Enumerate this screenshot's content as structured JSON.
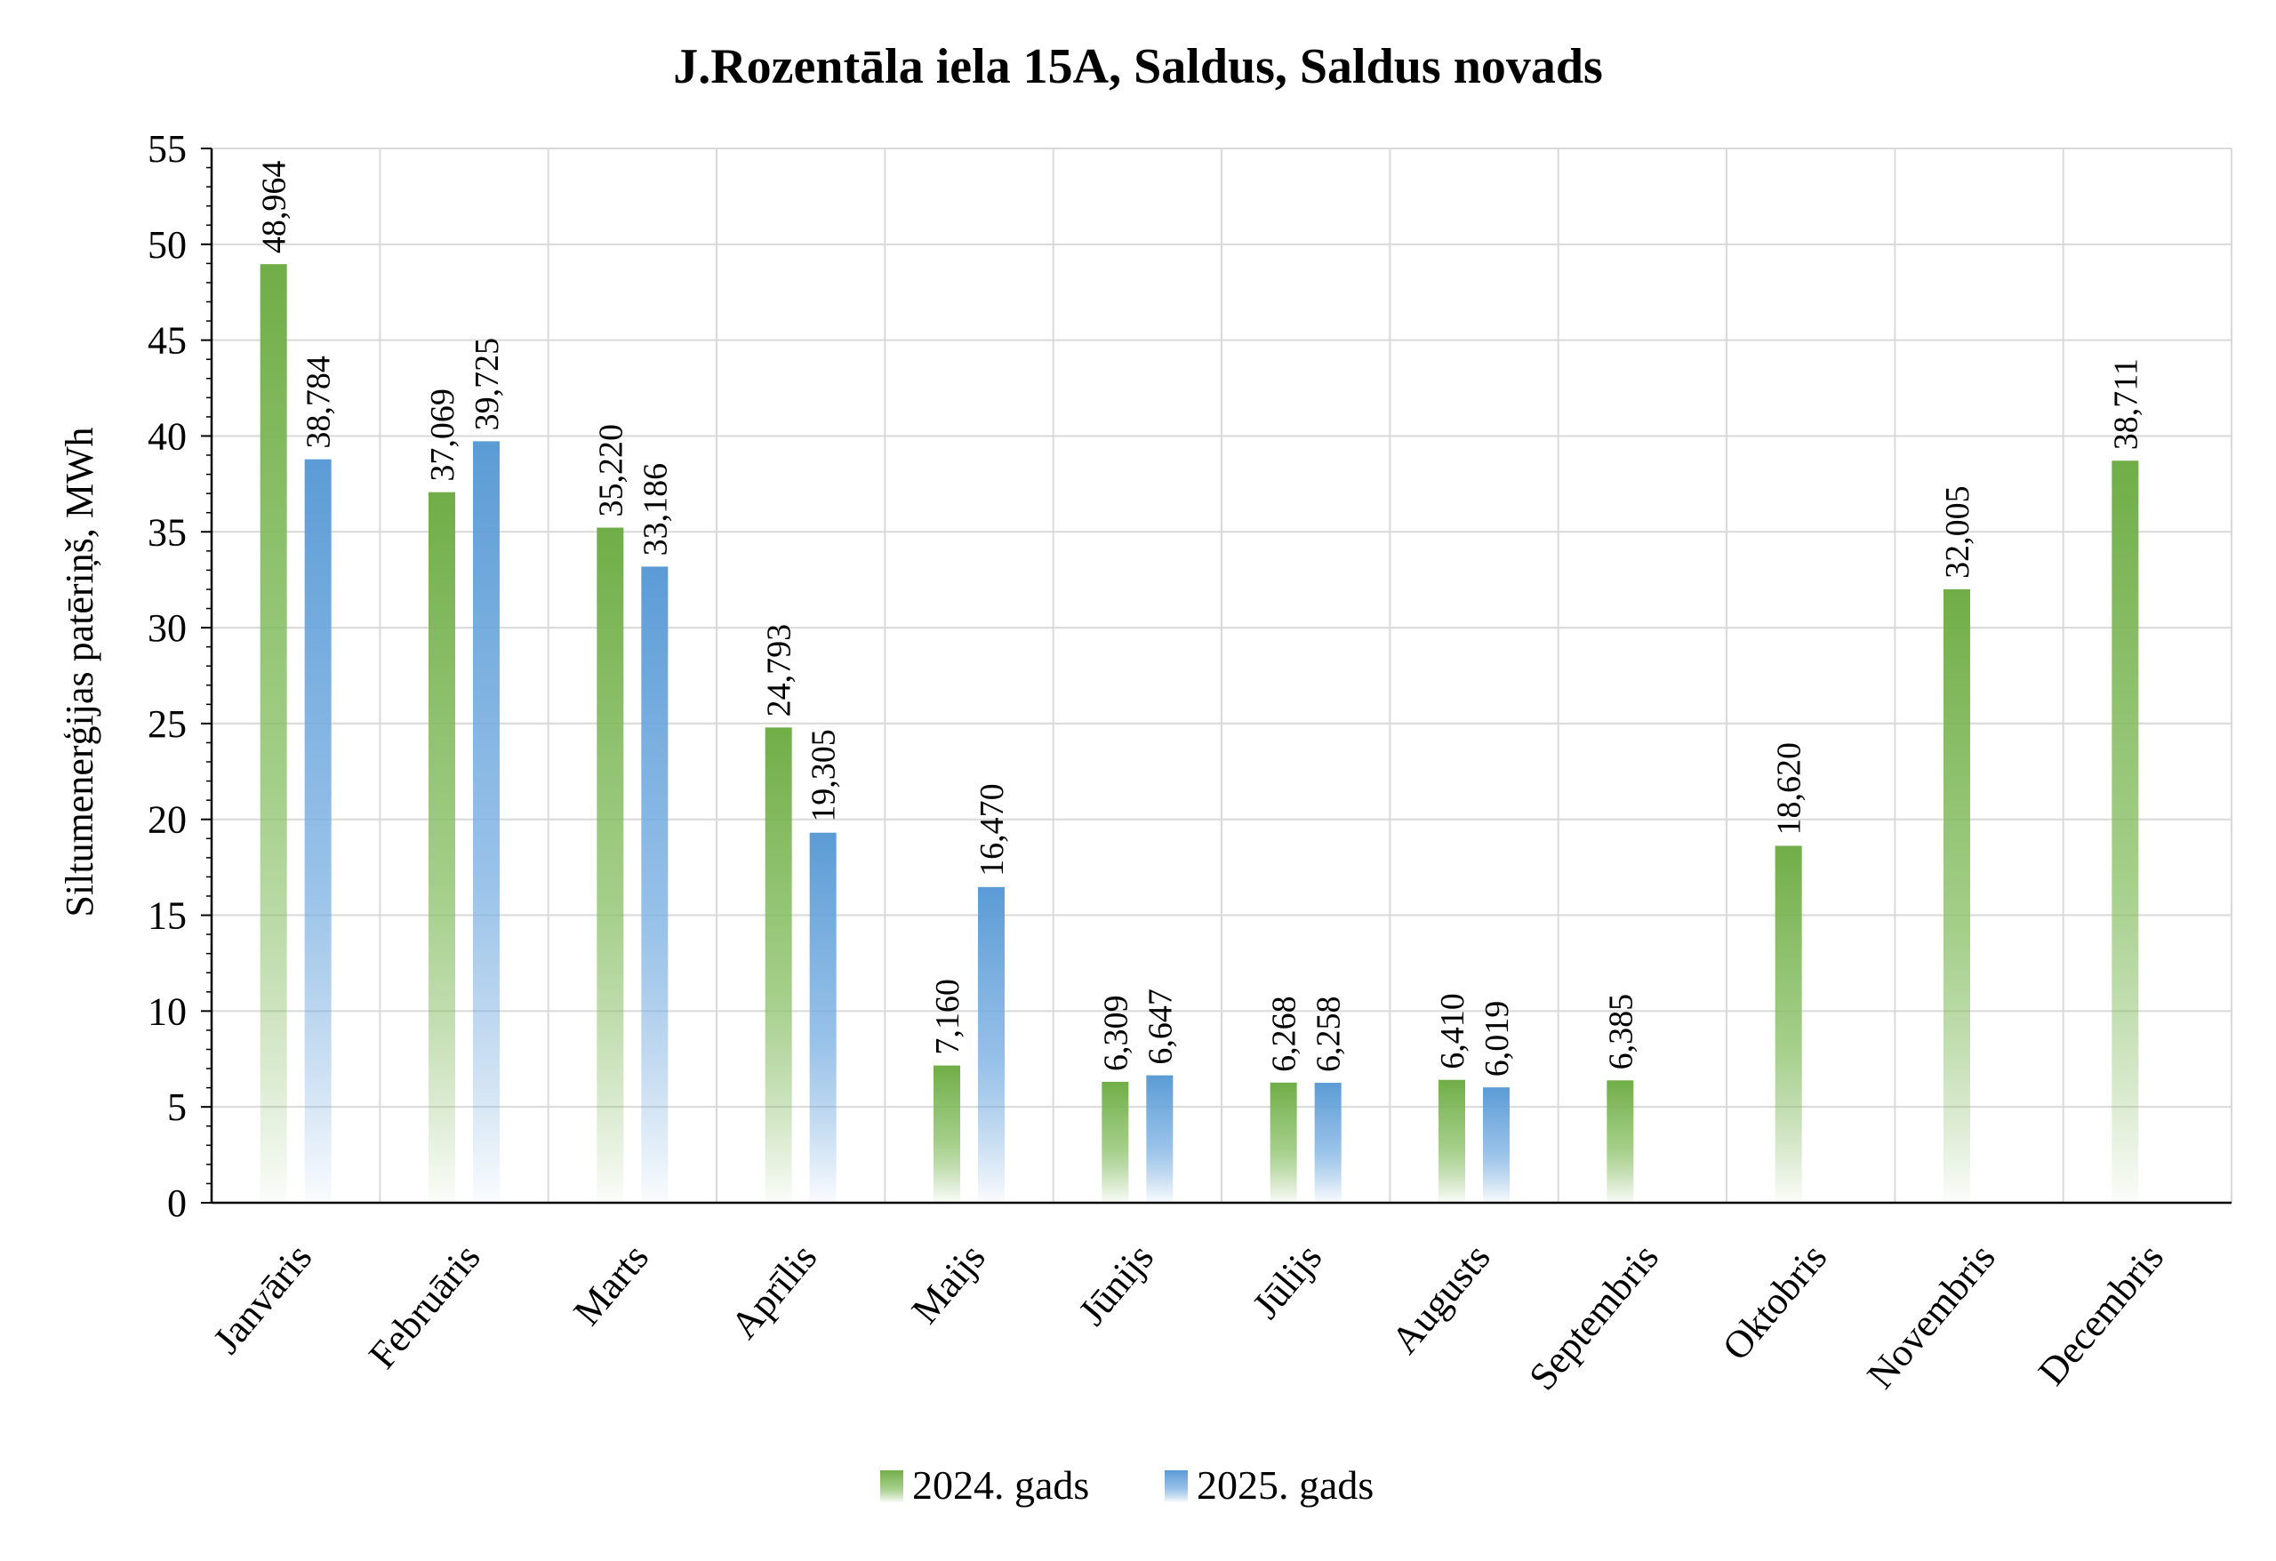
{
  "chart_data": {
    "type": "bar",
    "title": "J.Rozentāla iela 15A, Saldus, Saldus novads",
    "xlabel": "",
    "ylabel": "Siltumenerģijas patēriņš, MWh",
    "ylim": [
      0,
      55
    ],
    "ytick_step": 5,
    "grid": true,
    "legend_position": "bottom",
    "categories": [
      "Janvāris",
      "Februāris",
      "Marts",
      "Aprīlis",
      "Maijs",
      "Jūnijs",
      "Jūlijs",
      "Augusts",
      "Septembris",
      "Oktobris",
      "Novembris",
      "Decembris"
    ],
    "series": [
      {
        "name": "2024. gads",
        "color": "#70ad47",
        "values": [
          48.964,
          37.069,
          35.22,
          24.793,
          7.16,
          6.309,
          6.268,
          6.41,
          6.385,
          18.62,
          32.005,
          38.711
        ],
        "labels": [
          "48,964",
          "37,069",
          "35,220",
          "24,793",
          "7,160",
          "6,309",
          "6,268",
          "6,410",
          "6,385",
          "18,620",
          "32,005",
          "38,711"
        ]
      },
      {
        "name": "2025. gads",
        "color": "#5b9bd5",
        "values": [
          38.784,
          39.725,
          33.186,
          19.305,
          16.47,
          6.647,
          6.258,
          6.019,
          null,
          null,
          null,
          null
        ],
        "labels": [
          "38,784",
          "39,725",
          "33,186",
          "19,305",
          "16,470",
          "6,647",
          "6,258",
          "6,019",
          "",
          "",
          "",
          ""
        ]
      }
    ]
  }
}
